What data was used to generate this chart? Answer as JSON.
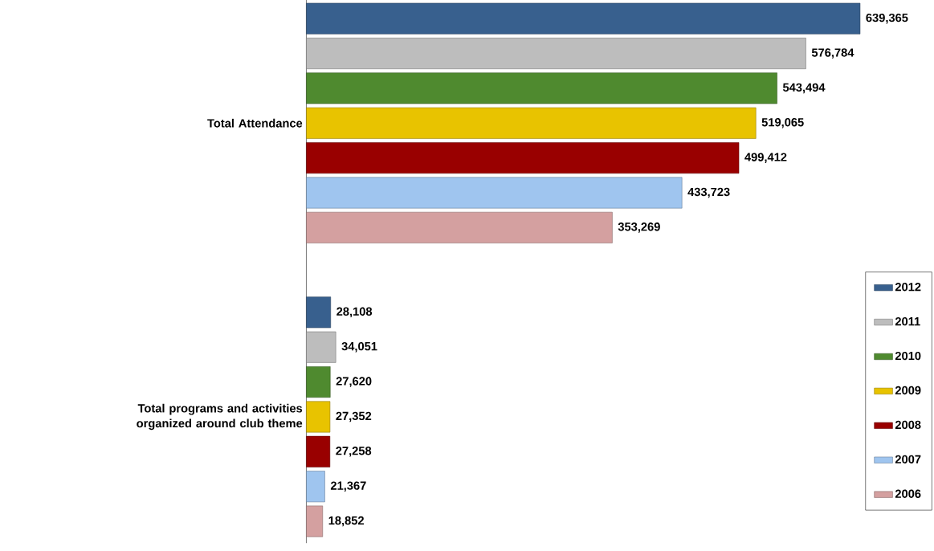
{
  "chart_data": {
    "type": "bar",
    "orientation": "horizontal",
    "categories": [
      "Total Attendance",
      "Total programs and activities organized around club theme"
    ],
    "series": [
      {
        "name": "2012",
        "color": "#38608e",
        "values": [
          639365,
          28108
        ],
        "value_labels": [
          "639,365",
          "28,108"
        ]
      },
      {
        "name": "2011",
        "color": "#bdbdbd",
        "values": [
          576784,
          34051
        ],
        "value_labels": [
          "576,784",
          "34,051"
        ]
      },
      {
        "name": "2010",
        "color": "#4f8a2f",
        "values": [
          543494,
          27620
        ],
        "value_labels": [
          "543,494",
          "27,620"
        ]
      },
      {
        "name": "2009",
        "color": "#e8c300",
        "values": [
          519065,
          27352
        ],
        "value_labels": [
          "519,065",
          "27,352"
        ]
      },
      {
        "name": "2008",
        "color": "#990000",
        "values": [
          499412,
          27258
        ],
        "value_labels": [
          "499,412",
          "27,258"
        ]
      },
      {
        "name": "2007",
        "color": "#9fc5ef",
        "values": [
          433723,
          21367
        ],
        "value_labels": [
          "433,723",
          "21,367"
        ]
      },
      {
        "name": "2006",
        "color": "#d4a0a0",
        "values": [
          353269,
          18852
        ],
        "value_labels": [
          "353,269",
          "18,852"
        ]
      }
    ],
    "legend": "right"
  }
}
